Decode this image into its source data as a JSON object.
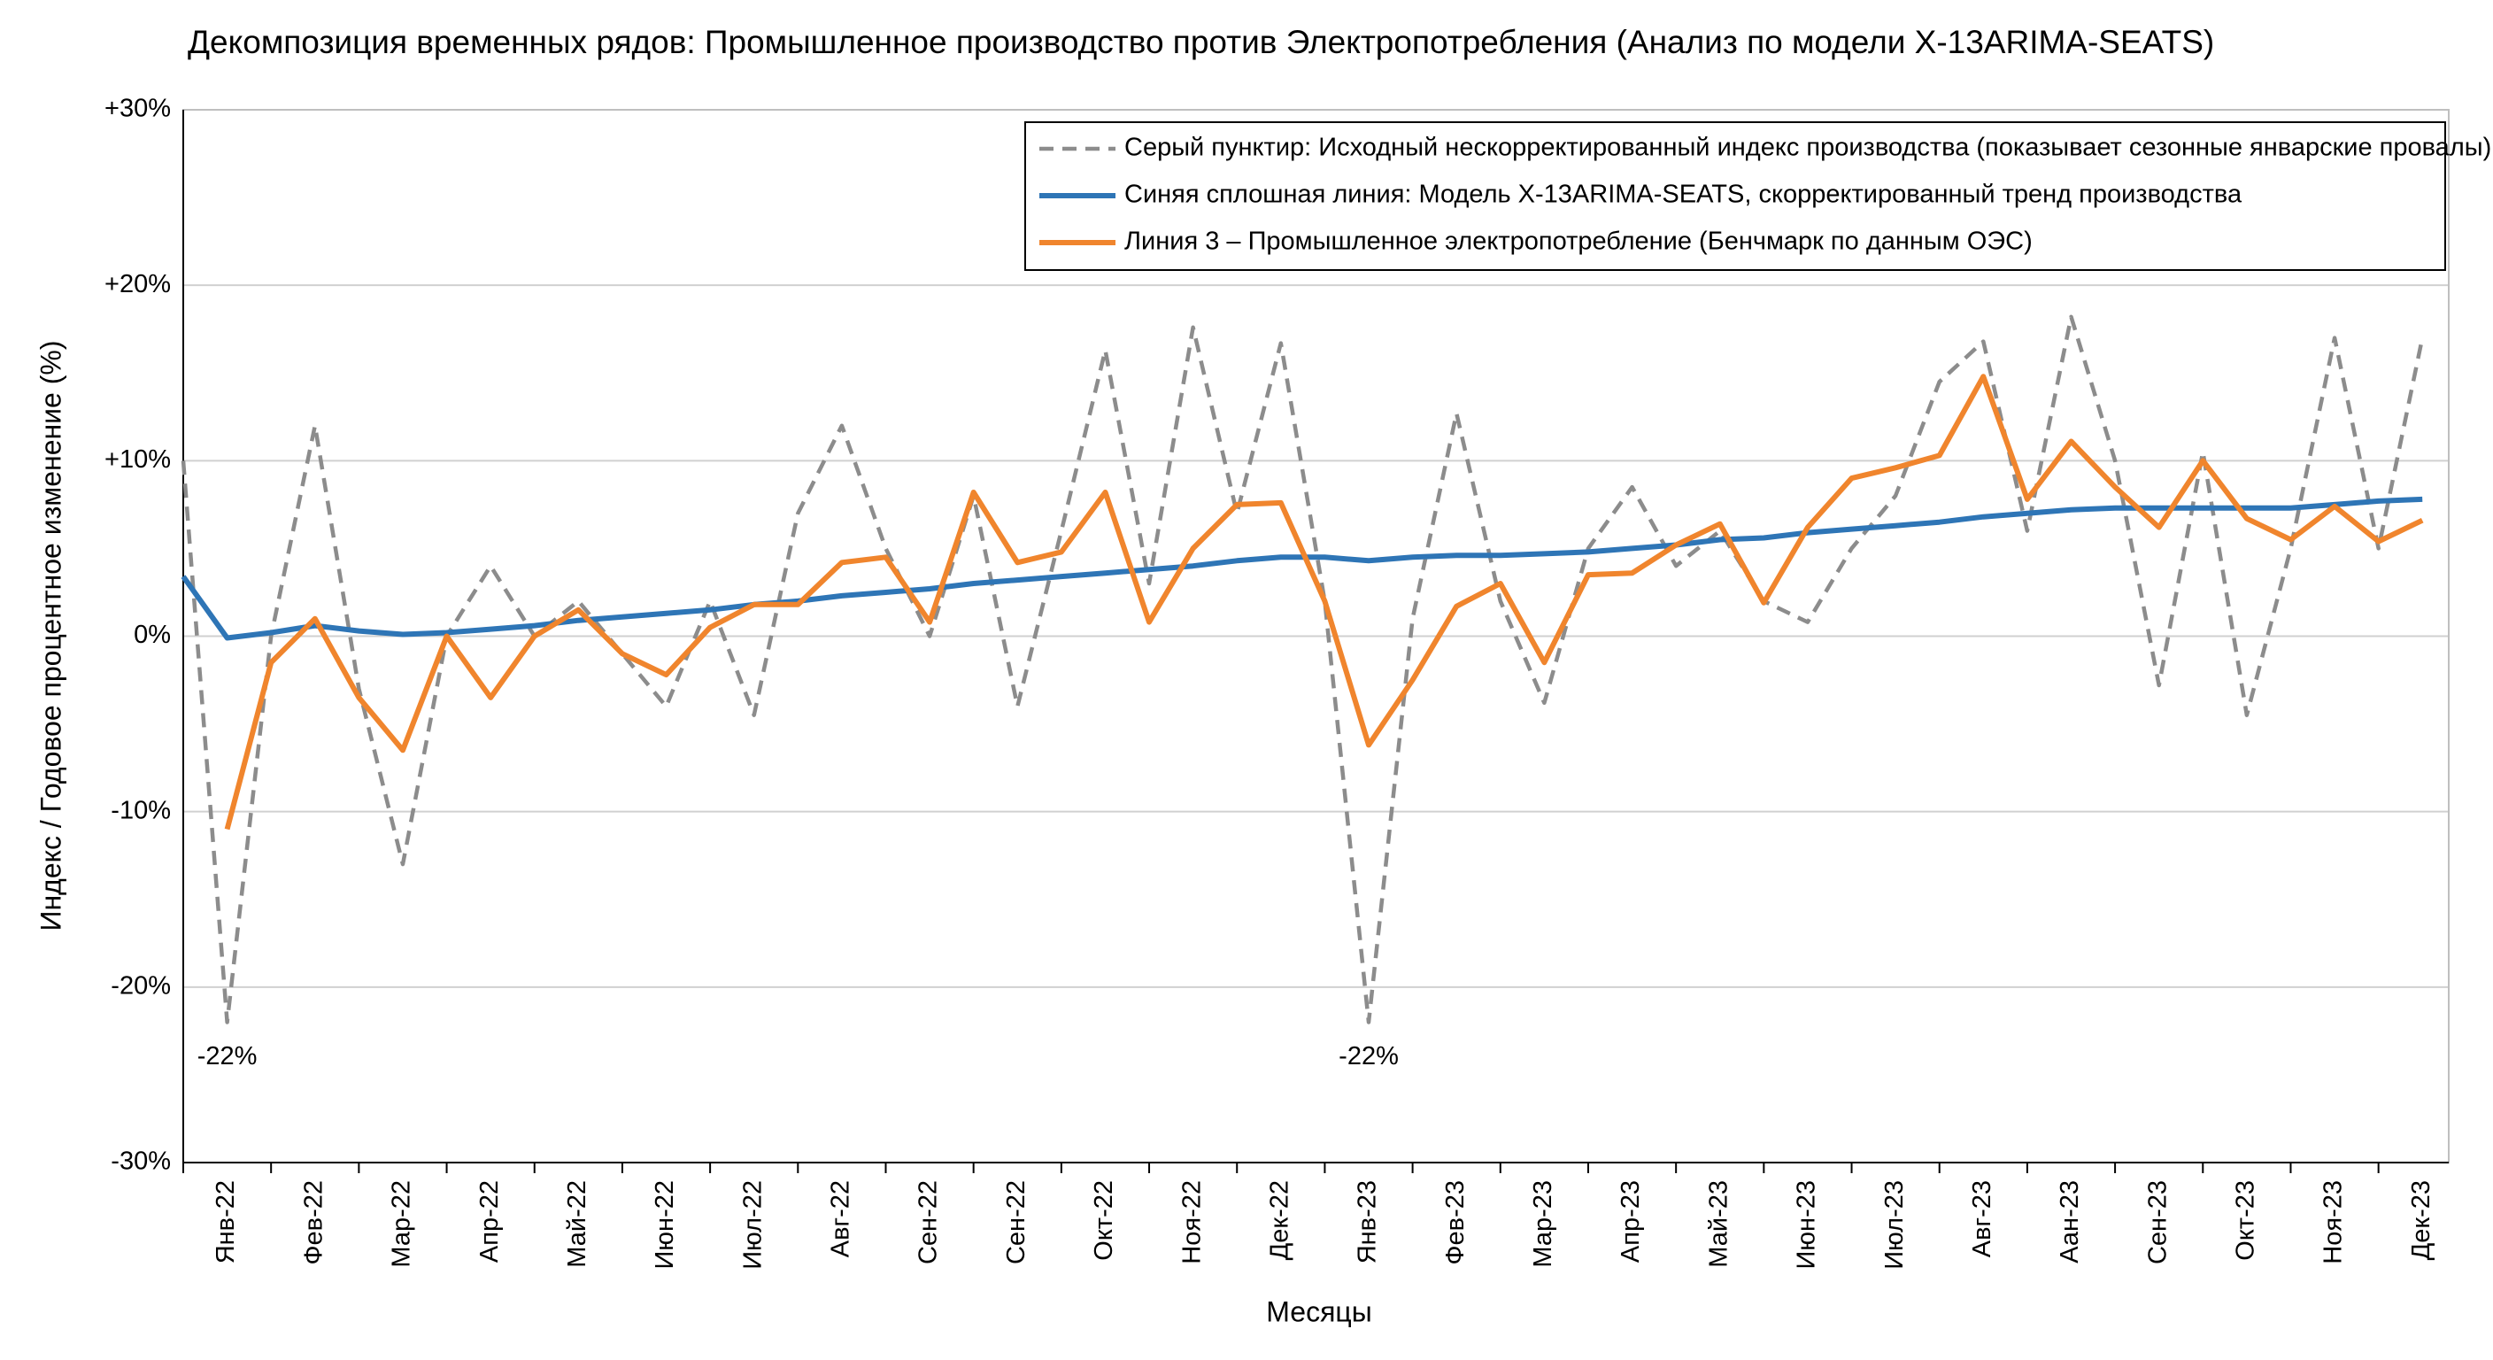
{
  "chart_data": {
    "type": "line",
    "title": "Декомпозиция временных рядов: Промышленное производство против Электропотребления (Анализ по модели X-13ARIMA-SEATS)",
    "x_label": "Месяцы",
    "y_label": "Индекс / Годовое процентное изменение (%)",
    "categories": [
      null,
      "Янв-22",
      null,
      "Фев-22",
      null,
      "Мар-22",
      null,
      "Апр-22",
      null,
      "Май-22",
      null,
      "Июн-22",
      null,
      "Июл-22",
      null,
      "Авг-22",
      null,
      "Сен-22",
      null,
      "Сен-22",
      null,
      "Окт-22",
      null,
      "Ноя-22",
      null,
      "Дек-22",
      null,
      "Янв-23",
      null,
      "Фев-23",
      null,
      "Мар-23",
      null,
      "Апр-23",
      null,
      "Май-23",
      null,
      "Июн-23",
      null,
      "Июл-23",
      null,
      "Авг-23",
      null,
      "Аан-23",
      null,
      "Сен-23",
      null,
      "Окт-23",
      null,
      "Ноя-23",
      null,
      "Дек-23"
    ],
    "series": [
      {
        "name": "Серый пунктир: Исходный нескорректированный индекс производства (показывает сезонные январские провалы)",
        "color": "#8c8c8c",
        "dashed": true,
        "values": [
          10,
          -22,
          0,
          12,
          -3,
          -13,
          0,
          4,
          0,
          2,
          -1,
          -4,
          2,
          -4.5,
          7,
          12,
          5,
          0,
          8,
          -4,
          6,
          16.3,
          3,
          17.6,
          7,
          16.7,
          2,
          -22,
          1,
          12.7,
          2,
          -3.8,
          5,
          8.5,
          4,
          6,
          2,
          0.8,
          5,
          8,
          14.5,
          16.8,
          6,
          18.2,
          10,
          -2.8,
          10.5,
          -4.5,
          5,
          17,
          5,
          17
        ]
      },
      {
        "name": "Синяя сплошная линия: Модель X-13ARIMA-SEATS, скорректированный тренд производства",
        "color": "#2e75b6",
        "dashed": false,
        "values": [
          3.4,
          -0.1,
          0.2,
          0.6,
          0.3,
          0.1,
          0.2,
          0.4,
          0.6,
          0.9,
          1.1,
          1.3,
          1.5,
          1.8,
          2.0,
          2.3,
          2.5,
          2.7,
          3.0,
          3.2,
          3.4,
          3.6,
          3.8,
          4.0,
          4.3,
          4.5,
          4.5,
          4.3,
          4.5,
          4.6,
          4.6,
          4.7,
          4.8,
          5.0,
          5.2,
          5.5,
          5.6,
          5.9,
          6.1,
          6.3,
          6.5,
          6.8,
          7.0,
          7.2,
          7.3,
          7.3,
          7.3,
          7.3,
          7.3,
          7.5,
          7.7,
          7.8
        ]
      },
      {
        "name": "Линия 3 – Промышленное электропотребление (Бенчмарк по данным ОЭС)",
        "color": "#f0852d",
        "dashed": false,
        "values": [
          null,
          -11,
          -1.5,
          1,
          -3.5,
          -6.5,
          0,
          -3.5,
          0,
          1.5,
          -1,
          -2.2,
          0.5,
          1.8,
          1.8,
          4.2,
          4.5,
          0.8,
          8.2,
          4.2,
          4.8,
          8.2,
          0.8,
          5,
          7.5,
          7.6,
          2,
          -6.2,
          -2.5,
          1.7,
          3,
          -1.5,
          3.5,
          3.6,
          5.2,
          6.4,
          1.9,
          6.2,
          9,
          9.6,
          10.3,
          14.8,
          7.8,
          11.1,
          8.5,
          6.2,
          10,
          6.7,
          5.5,
          7.4,
          5.4,
          6.6
        ]
      }
    ],
    "ylim": [
      -30,
      30
    ],
    "yticks": [
      {
        "value": -30,
        "label": "-30%"
      },
      {
        "value": -20,
        "label": "-20%"
      },
      {
        "value": -10,
        "label": "-10%"
      },
      {
        "value": 0,
        "label": "0%"
      },
      {
        "value": 10,
        "label": "+10%"
      },
      {
        "value": 20,
        "label": "+20%"
      },
      {
        "value": 30,
        "label": "+30%"
      }
    ],
    "grid": true,
    "legend": "top-right",
    "annotations": [
      {
        "text": "-22%",
        "x": "Янв-22",
        "y": -22
      },
      {
        "text": "-22%",
        "x": "Янв-23",
        "y": -22
      }
    ]
  }
}
